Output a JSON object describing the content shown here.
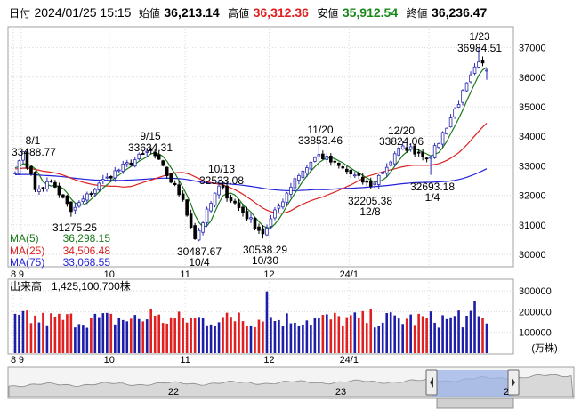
{
  "header": {
    "date_label": "日付",
    "datetime": "2024/01/25 15:15",
    "open_label": "始値",
    "open": "36,213.14",
    "high_label": "高値",
    "high": "36,312.36",
    "low_label": "安値",
    "low": "35,912.54",
    "close_label": "終値",
    "close": "36,236.47"
  },
  "colors": {
    "up": "#2a2ab0",
    "down": "#000000",
    "up_vol": "#1d1da8",
    "down_vol": "#e02020",
    "ma5": "#1a7a1a",
    "ma25": "#dd2222",
    "ma75": "#2222dd",
    "high_text": "#e02020",
    "low_text": "#1a8a1a",
    "border": "#a0a0a0",
    "navigator_fill": "#9cb4e8"
  },
  "legend": {
    "ma5_label": "MA(5)",
    "ma5_value": "36,298.15",
    "ma25_label": "MA(25)",
    "ma25_value": "34,506.48",
    "ma75_label": "MA(75)",
    "ma75_value": "33,068.55"
  },
  "volume_panel": {
    "label": "出来高",
    "latest": "1,425,100,700株",
    "unit": "(万株)"
  },
  "annotations": [
    {
      "text": "8/1",
      "date": "2023/08/01"
    },
    {
      "text": "33488.77",
      "date": "2023/08/01"
    },
    {
      "text": "31275.25",
      "date": "2023/08/18"
    },
    {
      "text": "9/15",
      "date": "2023/09/15"
    },
    {
      "text": "33634.31",
      "date": "2023/09/15"
    },
    {
      "text": "10/13",
      "date": "2023/10/13"
    },
    {
      "text": "32533.08",
      "date": "2023/10/13"
    },
    {
      "text": "30487.67",
      "date": "2023/10/04"
    },
    {
      "text": "10/4",
      "date": "2023/10/04"
    },
    {
      "text": "11/20",
      "date": "2023/11/20"
    },
    {
      "text": "33853.46",
      "date": "2023/11/20"
    },
    {
      "text": "30538.29",
      "date": "2023/10/30"
    },
    {
      "text": "10/30",
      "date": "2023/10/30"
    },
    {
      "text": "12/20",
      "date": "2023/12/20"
    },
    {
      "text": "33824.06",
      "date": "2023/12/20"
    },
    {
      "text": "32205.38",
      "date": "2023/12/08"
    },
    {
      "text": "12/8",
      "date": "2023/12/08"
    },
    {
      "text": "32693.18",
      "date": "2024/01/04"
    },
    {
      "text": "1/4",
      "date": "2024/01/04"
    },
    {
      "text": "1/23",
      "date": "2024/01/23"
    },
    {
      "text": "36984.51",
      "date": "2024/01/23"
    }
  ],
  "navigator": {
    "labels": [
      "22",
      "23",
      "2"
    ]
  },
  "chart_data": [
    {
      "type": "candlestick",
      "x": [
        "2023/07/28",
        "2024/01/25"
      ],
      "ylim": [
        29700,
        37500
      ],
      "y_ticks": [
        "37000",
        "36000",
        "35000",
        "34000",
        "33000",
        "32000",
        "31000",
        "30000"
      ],
      "x_tick_labels": [
        "8",
        "9",
        "10",
        "11",
        "12",
        "24/1"
      ],
      "ohlc_keypoints": [
        {
          "date": "2023/07/28",
          "close": 32759
        },
        {
          "date": "2023/07/31",
          "close": 33172
        },
        {
          "date": "2023/08/01",
          "high": 33488.77,
          "close": 33476
        },
        {
          "date": "2023/08/04",
          "close": 32192
        },
        {
          "date": "2023/08/10",
          "close": 32473
        },
        {
          "date": "2023/08/18",
          "low": 31275.25,
          "close": 31450
        },
        {
          "date": "2023/08/31",
          "close": 32619
        },
        {
          "date": "2023/09/15",
          "high": 33634.31,
          "close": 33533
        },
        {
          "date": "2023/09/29",
          "close": 31857
        },
        {
          "date": "2023/10/04",
          "low": 30487.67,
          "close": 30526
        },
        {
          "date": "2023/10/13",
          "high": 32533.08,
          "close": 32315
        },
        {
          "date": "2023/10/30",
          "low": 30538.29,
          "close": 30697
        },
        {
          "date": "2023/11/10",
          "close": 32568
        },
        {
          "date": "2023/11/20",
          "high": 33853.46,
          "close": 33388
        },
        {
          "date": "2023/12/08",
          "low": 32205.38,
          "close": 32307
        },
        {
          "date": "2023/12/20",
          "high": 33824.06,
          "close": 33675
        },
        {
          "date": "2024/01/04",
          "low": 32693.18,
          "close": 33288
        },
        {
          "date": "2024/01/23",
          "high": 36984.51,
          "close": 36517
        },
        {
          "date": "2024/01/25",
          "open": 36213.14,
          "high": 36312.36,
          "low": 35912.54,
          "close": 36236.47
        }
      ],
      "series": [
        {
          "name": "MA(5)",
          "last": 36298.15
        },
        {
          "name": "MA(25)",
          "last": 34506.48
        },
        {
          "name": "MA(75)",
          "last": 33068.55
        }
      ]
    },
    {
      "type": "bar",
      "ylim": [
        0,
        330000
      ],
      "y_ticks": [
        "300000",
        "200000",
        "100000"
      ],
      "x_tick_labels": [
        "8",
        "9",
        "10",
        "11",
        "12",
        "24/1"
      ],
      "last": 142510
    }
  ]
}
